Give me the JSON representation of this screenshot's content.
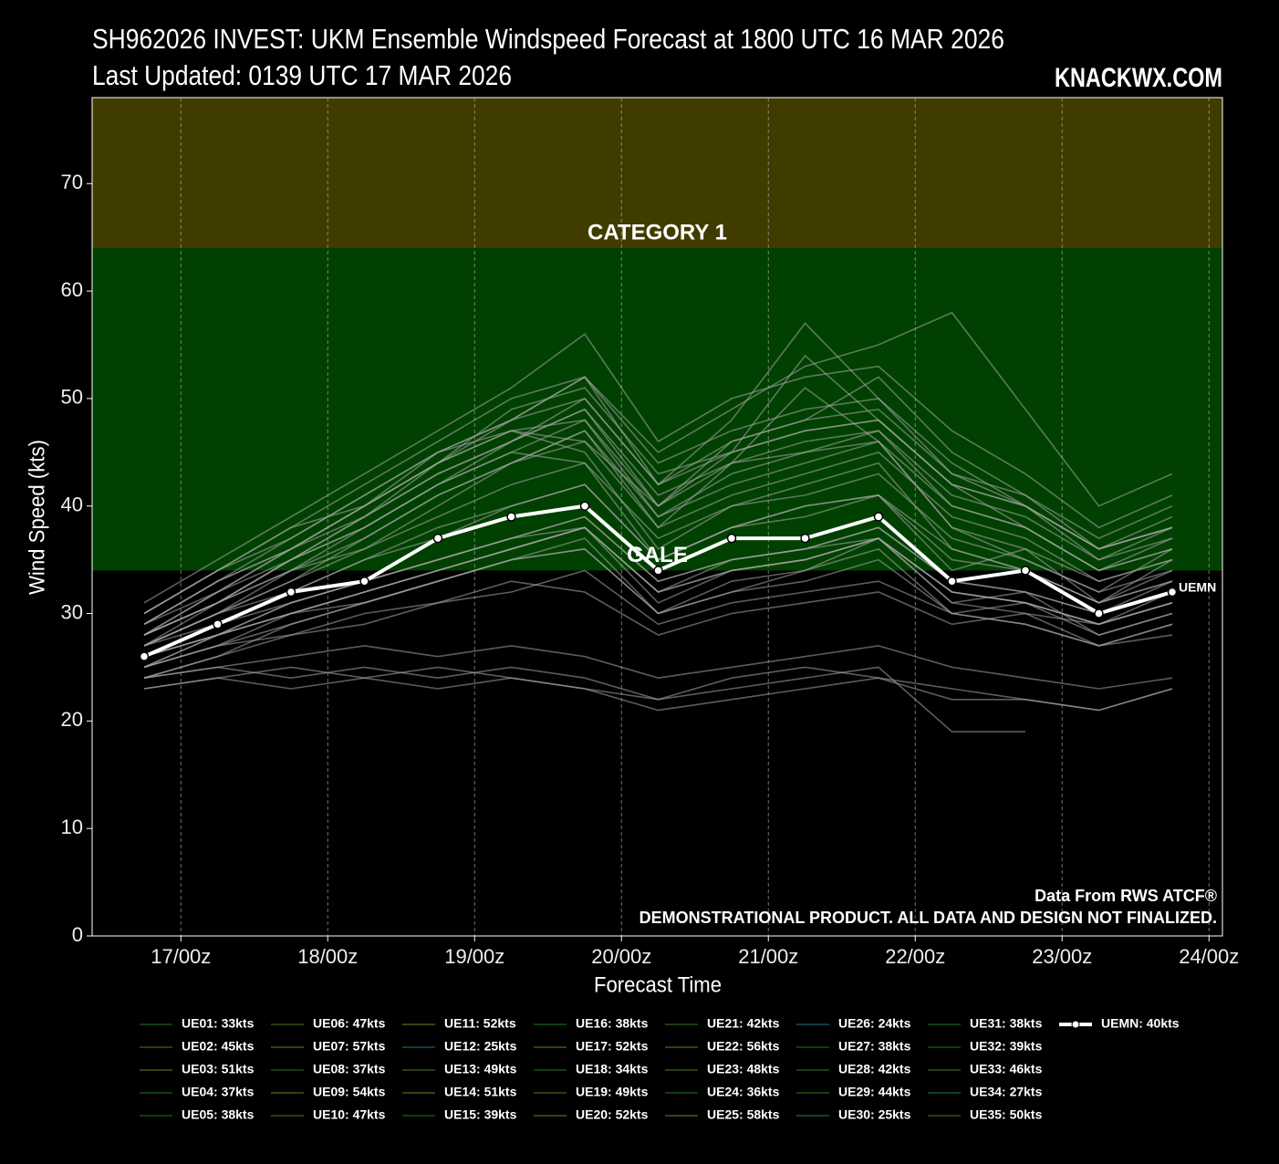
{
  "chart_data": {
    "type": "line",
    "title": "SH962026 INVEST: UKM Ensemble Windspeed Forecast at 1800 UTC 16 MAR 2026",
    "subtitle": "Last Updated: 0139 UTC 17 MAR 2026",
    "watermark": "KNACKWX.COM",
    "xlabel": "Forecast Time",
    "ylabel": "Wind Speed (kts)",
    "x": [
      -6,
      6,
      18,
      30,
      42,
      54,
      66,
      78,
      90,
      102,
      114,
      126,
      138,
      150,
      162
    ],
    "xlim": [
      -14.5,
      170.2
    ],
    "xticks": [
      {
        "value": 0,
        "label": "17/00z"
      },
      {
        "value": 24,
        "label": "18/00z"
      },
      {
        "value": 48,
        "label": "19/00z"
      },
      {
        "value": 72,
        "label": "20/00z"
      },
      {
        "value": 96,
        "label": "21/00z"
      },
      {
        "value": 120,
        "label": "22/00z"
      },
      {
        "value": 144,
        "label": "23/00z"
      },
      {
        "value": 168,
        "label": "24/00z"
      }
    ],
    "ylim": [
      0,
      78
    ],
    "yticks": [
      0,
      10,
      20,
      30,
      40,
      50,
      60,
      70
    ],
    "grid": true,
    "bands": [
      {
        "label": "GALE",
        "from": 34,
        "color": "#004000",
        "label_color": "#1f9a1f"
      },
      {
        "label": "CATEGORY 1",
        "from": 64,
        "color": "#403c00",
        "label_color": "#8c8a00"
      }
    ],
    "series": [
      {
        "name": "UE01: 33kts",
        "color": "#a8a8a8",
        "legend_color": "#33ee33",
        "values": [
          25,
          27,
          28,
          30,
          31,
          33,
          32,
          28,
          30,
          31,
          32,
          29,
          30,
          27,
          29
        ]
      },
      {
        "name": "UE02: 45kts",
        "color": "#a8a8a8",
        "legend_color": "#99ee33",
        "values": [
          28,
          32,
          35,
          38,
          42,
          45,
          44,
          35,
          38,
          40,
          41,
          34,
          36,
          31,
          35
        ]
      },
      {
        "name": "UE03: 51kts",
        "color": "#a8a8a8",
        "legend_color": "#ccff33",
        "values": [
          27,
          30,
          34,
          36,
          40,
          44,
          47,
          38,
          44,
          51,
          46,
          38,
          35,
          32,
          36
        ]
      },
      {
        "name": "UE04: 37kts",
        "color": "#a8a8a8",
        "legend_color": "#33ee33",
        "values": [
          24,
          26,
          29,
          31,
          33,
          35,
          37,
          30,
          32,
          34,
          36,
          30,
          31,
          28,
          30
        ]
      },
      {
        "name": "UE05: 38kts",
        "color": "#a8a8a8",
        "legend_color": "#33ee33",
        "values": [
          26,
          28,
          30,
          32,
          34,
          36,
          38,
          32,
          35,
          36,
          37,
          31,
          30,
          29,
          32
        ]
      },
      {
        "name": "UE06: 47kts",
        "color": "#a8a8a8",
        "legend_color": "#99ee33",
        "values": [
          29,
          33,
          36,
          40,
          44,
          47,
          45,
          36,
          40,
          42,
          44,
          36,
          34,
          31,
          34
        ]
      },
      {
        "name": "UE07: 57kts",
        "color": "#a8a8a8",
        "legend_color": "#ccff33",
        "values": [
          30,
          34,
          38,
          40,
          45,
          48,
          50,
          42,
          48,
          57,
          50,
          44,
          40,
          36,
          38
        ]
      },
      {
        "name": "UE08: 37kts",
        "color": "#a8a8a8",
        "legend_color": "#33ee33",
        "values": [
          25,
          27,
          30,
          31,
          33,
          35,
          36,
          30,
          33,
          34,
          37,
          31,
          32,
          28,
          30
        ]
      },
      {
        "name": "UE09: 54kts",
        "color": "#a8a8a8",
        "legend_color": "#ccff33",
        "values": [
          28,
          31,
          35,
          39,
          44,
          47,
          46,
          40,
          45,
          54,
          48,
          42,
          38,
          34,
          37
        ]
      },
      {
        "name": "UE10: 47kts",
        "color": "#a8a8a8",
        "legend_color": "#99ee33",
        "values": [
          27,
          30,
          33,
          37,
          41,
          44,
          47,
          39,
          42,
          44,
          46,
          38,
          36,
          33,
          35
        ]
      },
      {
        "name": "UE11: 52kts",
        "color": "#a8a8a8",
        "legend_color": "#ccff33",
        "values": [
          29,
          33,
          37,
          41,
          45,
          47,
          48,
          40,
          46,
          48,
          52,
          45,
          41,
          37,
          40
        ]
      },
      {
        "name": "UE12: 25kts",
        "color": "#a8a8a8",
        "legend_color": "#33e8ff",
        "values": [
          23,
          24,
          25,
          24,
          25,
          24,
          23,
          22,
          24,
          25,
          24,
          23,
          22,
          21,
          23
        ]
      },
      {
        "name": "UE13: 49kts",
        "color": "#a8a8a8",
        "legend_color": "#99ee33",
        "values": [
          27,
          31,
          34,
          38,
          42,
          46,
          49,
          41,
          44,
          46,
          47,
          40,
          38,
          34,
          36
        ]
      },
      {
        "name": "UE14: 51kts",
        "color": "#a8a8a8",
        "legend_color": "#ccff33",
        "values": [
          28,
          32,
          36,
          40,
          44,
          49,
          51,
          43,
          45,
          47,
          48,
          42,
          40,
          35,
          38
        ]
      },
      {
        "name": "UE15: 39kts",
        "color": "#a8a8a8",
        "legend_color": "#33ee33",
        "values": [
          26,
          28,
          31,
          33,
          35,
          37,
          39,
          33,
          35,
          36,
          38,
          33,
          32,
          30,
          33
        ]
      },
      {
        "name": "UE16: 38kts",
        "color": "#a8a8a8",
        "legend_color": "#33ee33",
        "values": [
          25,
          28,
          30,
          32,
          34,
          36,
          38,
          31,
          34,
          35,
          37,
          32,
          31,
          29,
          31
        ]
      },
      {
        "name": "UE17: 52kts",
        "color": "#a8a8a8",
        "legend_color": "#ccff33",
        "values": [
          30,
          34,
          37,
          41,
          45,
          48,
          52,
          44,
          47,
          49,
          50,
          43,
          41,
          36,
          39
        ]
      },
      {
        "name": "UE18: 34kts",
        "color": "#a8a8a8",
        "legend_color": "#33ee33",
        "values": [
          24,
          26,
          28,
          29,
          31,
          32,
          34,
          29,
          31,
          32,
          33,
          30,
          29,
          27,
          28
        ]
      },
      {
        "name": "UE19: 49kts",
        "color": "#a8a8a8",
        "legend_color": "#99ee33",
        "values": [
          28,
          31,
          35,
          39,
          43,
          46,
          49,
          40,
          44,
          45,
          47,
          41,
          39,
          35,
          37
        ]
      },
      {
        "name": "UE20: 52kts",
        "color": "#a8a8a8",
        "legend_color": "#ccff33",
        "values": [
          29,
          33,
          36,
          40,
          44,
          48,
          52,
          42,
          46,
          48,
          49,
          43,
          40,
          36,
          38
        ]
      },
      {
        "name": "UE21: 42kts",
        "color": "#a8a8a8",
        "legend_color": "#66ee33",
        "values": [
          27,
          29,
          32,
          35,
          37,
          40,
          42,
          35,
          38,
          39,
          41,
          35,
          34,
          31,
          33
        ]
      },
      {
        "name": "UE22: 56kts",
        "color": "#a8a8a8",
        "legend_color": "#ccff33",
        "values": [
          31,
          35,
          39,
          43,
          47,
          51,
          56,
          46,
          50,
          52,
          53,
          47,
          43,
          38,
          41
        ]
      },
      {
        "name": "UE23: 48kts",
        "color": "#a8a8a8",
        "legend_color": "#99ee33",
        "values": [
          28,
          31,
          35,
          38,
          42,
          45,
          48,
          39,
          43,
          45,
          46,
          40,
          38,
          34,
          36
        ]
      },
      {
        "name": "UE24: 36kts",
        "color": "#a8a8a8",
        "legend_color": "#33ee33",
        "values": [
          25,
          27,
          29,
          31,
          33,
          35,
          36,
          30,
          32,
          33,
          35,
          30,
          29,
          27,
          29
        ]
      },
      {
        "name": "UE25: 58kts",
        "color": "#a8a8a8",
        "legend_color": "#ddff33",
        "values": [
          30,
          34,
          38,
          42,
          46,
          50,
          52,
          45,
          49,
          53,
          55,
          58,
          49,
          40,
          43
        ]
      },
      {
        "name": "UE26: 24kts",
        "color": "#a8a8a8",
        "legend_color": "#33e8ff",
        "values": [
          23,
          24,
          23,
          24,
          23,
          24,
          23,
          21,
          22,
          23,
          24,
          22,
          22,
          21,
          23
        ]
      },
      {
        "name": "UE27: 38kts",
        "color": "#a8a8a8",
        "legend_color": "#33ee33",
        "values": [
          26,
          28,
          31,
          33,
          35,
          37,
          38,
          32,
          34,
          35,
          37,
          32,
          31,
          29,
          31
        ]
      },
      {
        "name": "UE28: 42kts",
        "color": "#a8a8a8",
        "legend_color": "#66ee33",
        "values": [
          27,
          30,
          32,
          35,
          38,
          40,
          42,
          35,
          38,
          40,
          41,
          36,
          34,
          31,
          33
        ]
      },
      {
        "name": "UE29: 44kts",
        "color": "#a8a8a8",
        "legend_color": "#66ee33",
        "values": [
          27,
          30,
          33,
          36,
          39,
          42,
          44,
          37,
          40,
          41,
          43,
          37,
          35,
          32,
          34
        ]
      },
      {
        "name": "UE30: 25kts",
        "color": "#a8a8a8",
        "legend_color": "#33e8ff",
        "values": [
          24,
          25,
          24,
          25,
          24,
          25,
          24,
          22,
          23,
          24,
          25,
          19,
          19,
          null,
          null
        ]
      },
      {
        "name": "UE31: 38kts",
        "color": "#a8a8a8",
        "legend_color": "#33ee33",
        "values": [
          25,
          28,
          30,
          32,
          34,
          36,
          38,
          32,
          34,
          35,
          37,
          32,
          31,
          29,
          31
        ]
      },
      {
        "name": "UE32: 39kts",
        "color": "#a8a8a8",
        "legend_color": "#33ee33",
        "values": [
          26,
          29,
          31,
          33,
          35,
          37,
          39,
          33,
          35,
          36,
          38,
          33,
          32,
          30,
          32
        ]
      },
      {
        "name": "UE33: 46kts",
        "color": "#a8a8a8",
        "legend_color": "#99ee33",
        "values": [
          28,
          31,
          34,
          37,
          41,
          44,
          46,
          38,
          41,
          43,
          45,
          39,
          37,
          33,
          35
        ]
      },
      {
        "name": "UE34: 27kts",
        "color": "#a8a8a8",
        "legend_color": "#33eedd",
        "values": [
          24,
          25,
          26,
          27,
          26,
          27,
          26,
          24,
          25,
          26,
          27,
          25,
          24,
          23,
          24
        ]
      },
      {
        "name": "UE35: 50kts",
        "color": "#a8a8a8",
        "legend_color": "#99ee33",
        "values": [
          29,
          32,
          36,
          39,
          43,
          46,
          50,
          42,
          45,
          47,
          48,
          42,
          40,
          36,
          38
        ]
      },
      {
        "name": "UEMN: 40kts",
        "color": "#ffffff",
        "legend_color": "#ffffff",
        "mean": true,
        "end_label": "UEMN",
        "values": [
          26,
          29,
          32,
          33,
          37,
          39,
          40,
          34,
          37,
          37,
          39,
          33,
          34,
          30,
          32
        ]
      }
    ],
    "annotations": [
      "Data From RWS ATCF®",
      "DEMONSTRATIONAL PRODUCT. ALL DATA AND DESIGN NOT FINALIZED."
    ]
  }
}
